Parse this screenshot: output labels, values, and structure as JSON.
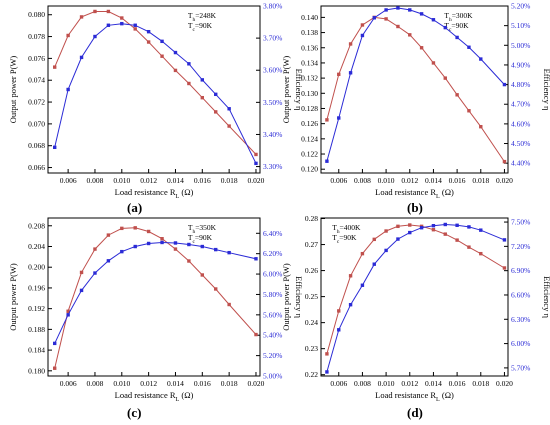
{
  "colors": {
    "power": "#c0504d",
    "efficiency": "#2b2bd6",
    "axis": "#000000"
  },
  "panels": [
    {
      "label": "(a)",
      "annotation": [
        "T_h=248K",
        "T_c=90K"
      ],
      "xlabel": "Load resistance R_L (Ω)",
      "ylabel_left": "Output power P(W)",
      "ylabel_right": "Efficiency η",
      "xlim": [
        0.0045,
        0.0203
      ],
      "xticks": [
        0.006,
        0.008,
        0.01,
        0.012,
        0.014,
        0.016,
        0.018,
        0.02
      ],
      "xtick_labels": [
        "0.006",
        "0.008",
        "0.010",
        "0.012",
        "0.014",
        "0.016",
        "0.018",
        "0.020"
      ],
      "ylim_left": [
        0.0655,
        0.0808
      ],
      "yticks_left": [
        0.066,
        0.068,
        0.07,
        0.072,
        0.074,
        0.076,
        0.078,
        0.08
      ],
      "ytick_labels_left": [
        "0.066",
        "0.068",
        "0.070",
        "0.072",
        "0.074",
        "0.076",
        "0.078",
        "0.080"
      ],
      "ylim_right": [
        3.28,
        3.8
      ],
      "yticks_right": [
        3.3,
        3.4,
        3.5,
        3.6,
        3.7,
        3.8
      ],
      "ytick_labels_right": [
        "3.30%",
        "3.40%",
        "3.50%",
        "3.60%",
        "3.70%",
        "3.80%"
      ],
      "x": [
        0.005,
        0.006,
        0.007,
        0.008,
        0.009,
        0.01,
        0.011,
        0.012,
        0.013,
        0.014,
        0.015,
        0.016,
        0.017,
        0.018,
        0.02
      ],
      "power": [
        0.0752,
        0.0781,
        0.0798,
        0.0803,
        0.0803,
        0.0797,
        0.0787,
        0.0775,
        0.0762,
        0.0749,
        0.0737,
        0.0724,
        0.0711,
        0.0698,
        0.0672
      ],
      "efficiency": [
        3.36,
        3.54,
        3.64,
        3.705,
        3.74,
        3.745,
        3.74,
        3.72,
        3.69,
        3.655,
        3.62,
        3.57,
        3.525,
        3.48,
        3.31
      ]
    },
    {
      "label": "(b)",
      "annotation": [
        "T_h=300K",
        "T_c=90K"
      ],
      "xlabel": "Load resistance R_L (Ω)",
      "ylabel_left": "Output power P(W)",
      "ylabel_right": "Efficiency η",
      "xlim": [
        0.0045,
        0.0203
      ],
      "xticks": [
        0.006,
        0.008,
        0.01,
        0.012,
        0.014,
        0.016,
        0.018,
        0.02
      ],
      "xtick_labels": [
        "0.006",
        "0.008",
        "0.010",
        "0.012",
        "0.014",
        "0.016",
        "0.018",
        "0.020"
      ],
      "ylim_left": [
        0.1195,
        0.1415
      ],
      "yticks_left": [
        0.12,
        0.122,
        0.124,
        0.126,
        0.128,
        0.13,
        0.132,
        0.134,
        0.136,
        0.138,
        0.14
      ],
      "ytick_labels_left": [
        "0.120",
        "0.122",
        "0.124",
        "0.126",
        "0.128",
        "0.130",
        "0.132",
        "0.134",
        "0.136",
        "0.138",
        "0.140"
      ],
      "ylim_right": [
        4.35,
        5.2
      ],
      "yticks_right": [
        4.4,
        4.5,
        4.6,
        4.7,
        4.8,
        4.9,
        5.0,
        5.1,
        5.2
      ],
      "ytick_labels_right": [
        "4.40%",
        "4.50%",
        "4.60%",
        "4.70%",
        "4.80%",
        "4.90%",
        "5.00%",
        "5.10%",
        "5.20%"
      ],
      "x": [
        0.005,
        0.006,
        0.007,
        0.008,
        0.009,
        0.01,
        0.011,
        0.012,
        0.013,
        0.014,
        0.015,
        0.016,
        0.017,
        0.018,
        0.02
      ],
      "power": [
        0.1265,
        0.1325,
        0.1365,
        0.139,
        0.14,
        0.1398,
        0.1388,
        0.1377,
        0.136,
        0.134,
        0.132,
        0.1298,
        0.1277,
        0.1256,
        0.121
      ],
      "efficiency": [
        4.41,
        4.63,
        4.86,
        5.05,
        5.14,
        5.18,
        5.19,
        5.18,
        5.16,
        5.13,
        5.09,
        5.04,
        4.99,
        4.93,
        4.8
      ]
    },
    {
      "label": "(c)",
      "annotation": [
        "T_h=350K",
        "T_c=90K"
      ],
      "xlabel": "Load resistance R_L (Ω)",
      "ylabel_left": "Output power P(W)",
      "ylabel_right": "Efficiency η",
      "xlim": [
        0.0045,
        0.0203
      ],
      "xticks": [
        0.006,
        0.008,
        0.01,
        0.012,
        0.014,
        0.016,
        0.018,
        0.02
      ],
      "xtick_labels": [
        "0.006",
        "0.008",
        "0.010",
        "0.012",
        "0.014",
        "0.016",
        "0.018",
        "0.020"
      ],
      "ylim_left": [
        0.179,
        0.2095
      ],
      "yticks_left": [
        0.18,
        0.184,
        0.188,
        0.192,
        0.196,
        0.2,
        0.204,
        0.208
      ],
      "ytick_labels_left": [
        "0.180",
        "0.184",
        "0.188",
        "0.192",
        "0.196",
        "0.200",
        "0.204",
        "0.208"
      ],
      "ylim_right": [
        5.0,
        6.55
      ],
      "yticks_right": [
        5.0,
        5.2,
        5.4,
        5.6,
        5.8,
        6.0,
        6.2,
        6.4
      ],
      "ytick_labels_right": [
        "5.00%",
        "5.20%",
        "5.40%",
        "5.60%",
        "5.80%",
        "6.00%",
        "6.20%",
        "6.40%"
      ],
      "x": [
        0.005,
        0.006,
        0.007,
        0.008,
        0.009,
        0.01,
        0.011,
        0.012,
        0.013,
        0.014,
        0.015,
        0.016,
        0.017,
        0.018,
        0.02
      ],
      "power": [
        0.1805,
        0.1915,
        0.199,
        0.2035,
        0.2062,
        0.2075,
        0.2076,
        0.2069,
        0.2055,
        0.2035,
        0.2012,
        0.1985,
        0.1958,
        0.1928,
        0.187
      ],
      "efficiency": [
        5.32,
        5.6,
        5.84,
        6.01,
        6.13,
        6.22,
        6.27,
        6.3,
        6.31,
        6.305,
        6.29,
        6.27,
        6.24,
        6.21,
        6.15
      ]
    },
    {
      "label": "(d)",
      "annotation": [
        "T_h=400K",
        "T_c=90K"
      ],
      "xlabel": "Load resistance R_L (Ω)",
      "ylabel_left": "Output power P(W)",
      "ylabel_right": "Efficiency η",
      "xlim": [
        0.0045,
        0.0203
      ],
      "xticks": [
        0.006,
        0.008,
        0.01,
        0.012,
        0.014,
        0.016,
        0.018,
        0.02
      ],
      "xtick_labels": [
        "0.006",
        "0.008",
        "0.010",
        "0.012",
        "0.014",
        "0.016",
        "0.018",
        "0.020"
      ],
      "ylim_left": [
        0.2195,
        0.2802
      ],
      "yticks_left": [
        0.22,
        0.23,
        0.24,
        0.25,
        0.26,
        0.27,
        0.28
      ],
      "ytick_labels_left": [
        "0.22",
        "0.23",
        "0.24",
        "0.25",
        "0.26",
        "0.27",
        "0.28"
      ],
      "ylim_right": [
        5.6,
        7.55
      ],
      "yticks_right": [
        5.7,
        6.0,
        6.3,
        6.6,
        6.9,
        7.2,
        7.5
      ],
      "ytick_labels_right": [
        "5.70%",
        "6.00%",
        "6.30%",
        "6.60%",
        "6.90%",
        "7.20%",
        "7.50%"
      ],
      "x": [
        0.005,
        0.006,
        0.007,
        0.008,
        0.009,
        0.01,
        0.011,
        0.012,
        0.013,
        0.014,
        0.015,
        0.016,
        0.017,
        0.018,
        0.02
      ],
      "power": [
        0.228,
        0.2445,
        0.258,
        0.2665,
        0.272,
        0.2752,
        0.277,
        0.2775,
        0.277,
        0.2757,
        0.274,
        0.2717,
        0.269,
        0.2665,
        0.261
      ],
      "efficiency": [
        5.65,
        6.17,
        6.48,
        6.72,
        6.98,
        7.15,
        7.29,
        7.37,
        7.43,
        7.455,
        7.47,
        7.46,
        7.44,
        7.4,
        7.28
      ]
    }
  ]
}
